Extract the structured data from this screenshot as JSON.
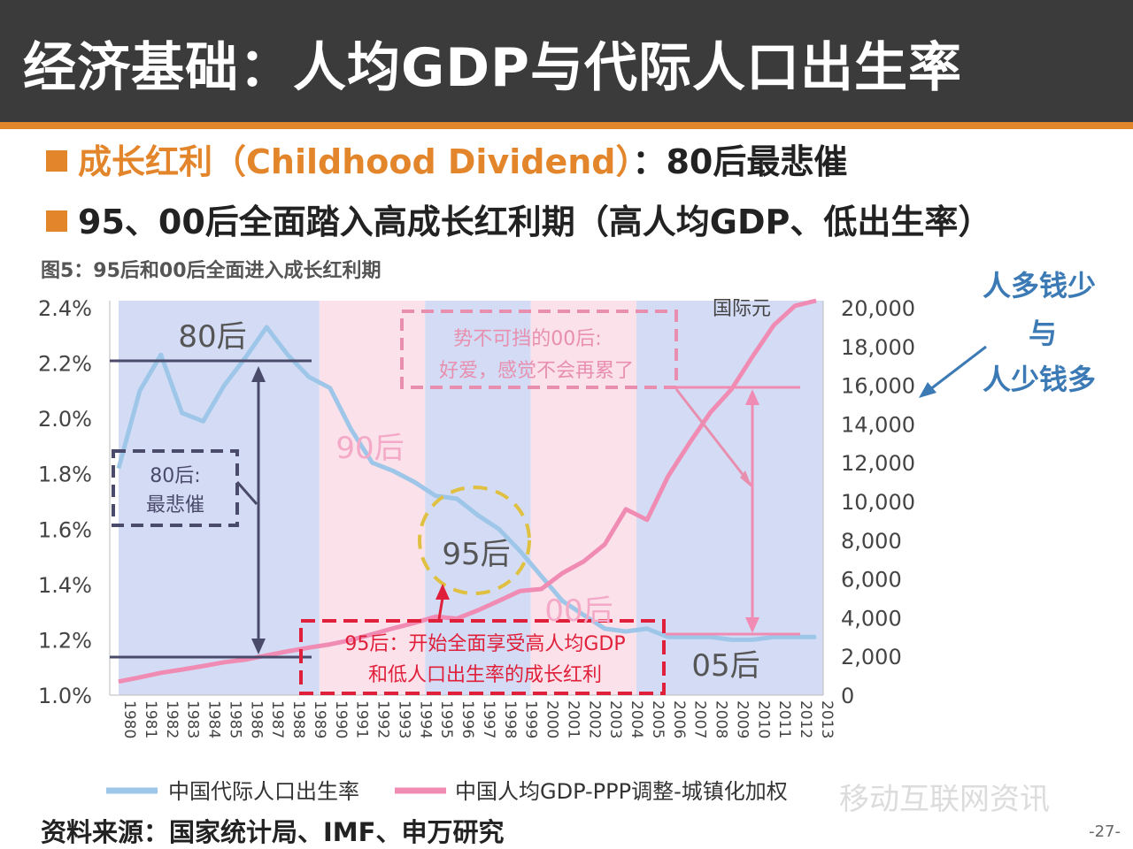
{
  "header": {
    "title": "经济基础：人均GDP与代际人口出生率"
  },
  "bullets": {
    "b1_highlight": "成长红利（Childhood Dividend）",
    "b1_rest": "：80后最悲催",
    "b2": "95、00后全面踏入高成长红利期（高人均GDP、低出生率）"
  },
  "figure_caption": "图5：95后和00后全面进入成长红利期",
  "side_note": {
    "line1": "人多钱少",
    "line2": "与",
    "line3": "人少钱多"
  },
  "source": "资料来源：国家统计局、IMF、申万研究",
  "page_number": "-27-",
  "watermark": "移动互联网资讯",
  "colors": {
    "accent": "#e3852a",
    "birth_line": "#9ec6e8",
    "gdp_line": "#f08cb4",
    "annotation_red": "#e0203a",
    "annotation_dark": "#4a4a6a"
  },
  "chart_data": {
    "type": "line",
    "y_left_unit": "",
    "y_right_unit": "国际元",
    "y_left_ticks": [
      "2.4%",
      "2.2%",
      "2.0%",
      "1.8%",
      "1.6%",
      "1.4%",
      "1.2%",
      "1.0%"
    ],
    "y_left_range": [
      1.0,
      2.4
    ],
    "y_right_ticks": [
      "20,000",
      "18,000",
      "16,000",
      "14,000",
      "12,000",
      "10,000",
      "8,000",
      "6,000",
      "4,000",
      "2,000",
      "0"
    ],
    "y_right_range": [
      0,
      20000
    ],
    "x_years": [
      1980,
      1981,
      1982,
      1983,
      1984,
      1985,
      1986,
      1987,
      1988,
      1989,
      1990,
      1991,
      1992,
      1993,
      1994,
      1995,
      1996,
      1997,
      1998,
      1999,
      2000,
      2001,
      2002,
      2003,
      2004,
      2005,
      2006,
      2007,
      2008,
      2009,
      2010,
      2011,
      2012,
      2013
    ],
    "x_tick_labels": [
      "1980",
      "1981",
      "1982",
      "1983",
      "1984",
      "1985",
      "1986",
      "1987",
      "1988",
      "1989",
      "1990",
      "1991",
      "1992",
      "1993",
      "1994",
      "1995",
      "1996",
      "1997",
      "1998",
      "1999",
      "2000",
      "2001",
      "2002",
      "2003",
      "2004",
      "2005",
      "2006",
      "2007",
      "2008",
      "2009",
      "2010",
      "2011",
      "2012",
      "2013"
    ],
    "series": [
      {
        "name": "中国代际人口出生率",
        "axis": "left",
        "values": [
          1.82,
          2.1,
          2.23,
          2.02,
          1.99,
          2.12,
          2.22,
          2.33,
          2.23,
          2.15,
          2.11,
          1.96,
          1.84,
          1.81,
          1.77,
          1.72,
          1.71,
          1.65,
          1.6,
          1.52,
          1.43,
          1.34,
          1.29,
          1.24,
          1.23,
          1.24,
          1.21,
          1.21,
          1.21,
          1.2,
          1.2,
          1.21,
          1.21,
          1.21
        ]
      },
      {
        "name": "中国人均GDP-PPP调整-城镇化加权",
        "axis": "right",
        "values": [
          700,
          920,
          1150,
          1320,
          1500,
          1700,
          1830,
          2050,
          2260,
          2450,
          2620,
          2850,
          3140,
          3450,
          3730,
          4050,
          3950,
          4380,
          4870,
          5380,
          5480,
          6300,
          6900,
          7780,
          9600,
          9050,
          11300,
          13000,
          14600,
          15800,
          17500,
          19100,
          20100,
          21000
        ]
      }
    ],
    "period_bands": [
      {
        "from": 1980,
        "to": 1989.5,
        "color": "#d3dcf4"
      },
      {
        "from": 1989.5,
        "to": 1994.5,
        "color": "#fbe1ea"
      },
      {
        "from": 1994.5,
        "to": 1999.5,
        "color": "#d3dcf4"
      },
      {
        "from": 1999.5,
        "to": 2004.5,
        "color": "#fbe1ea"
      },
      {
        "from": 2004.5,
        "to": 2013.5,
        "color": "#d3dcf4"
      }
    ],
    "cohort_labels": [
      "80后",
      "90后",
      "95后",
      "00后",
      "05后"
    ],
    "annotations": {
      "box_80_line1": "80后:",
      "box_80_line2": "最悲催",
      "box_00_line1": "势不可挡的00后:",
      "box_00_line2": "好爱，感觉不会再累了",
      "box_95_line1": "95后：开始全面享受高人均GDP",
      "box_95_line2": "和低人口出生率的成长红利"
    }
  }
}
